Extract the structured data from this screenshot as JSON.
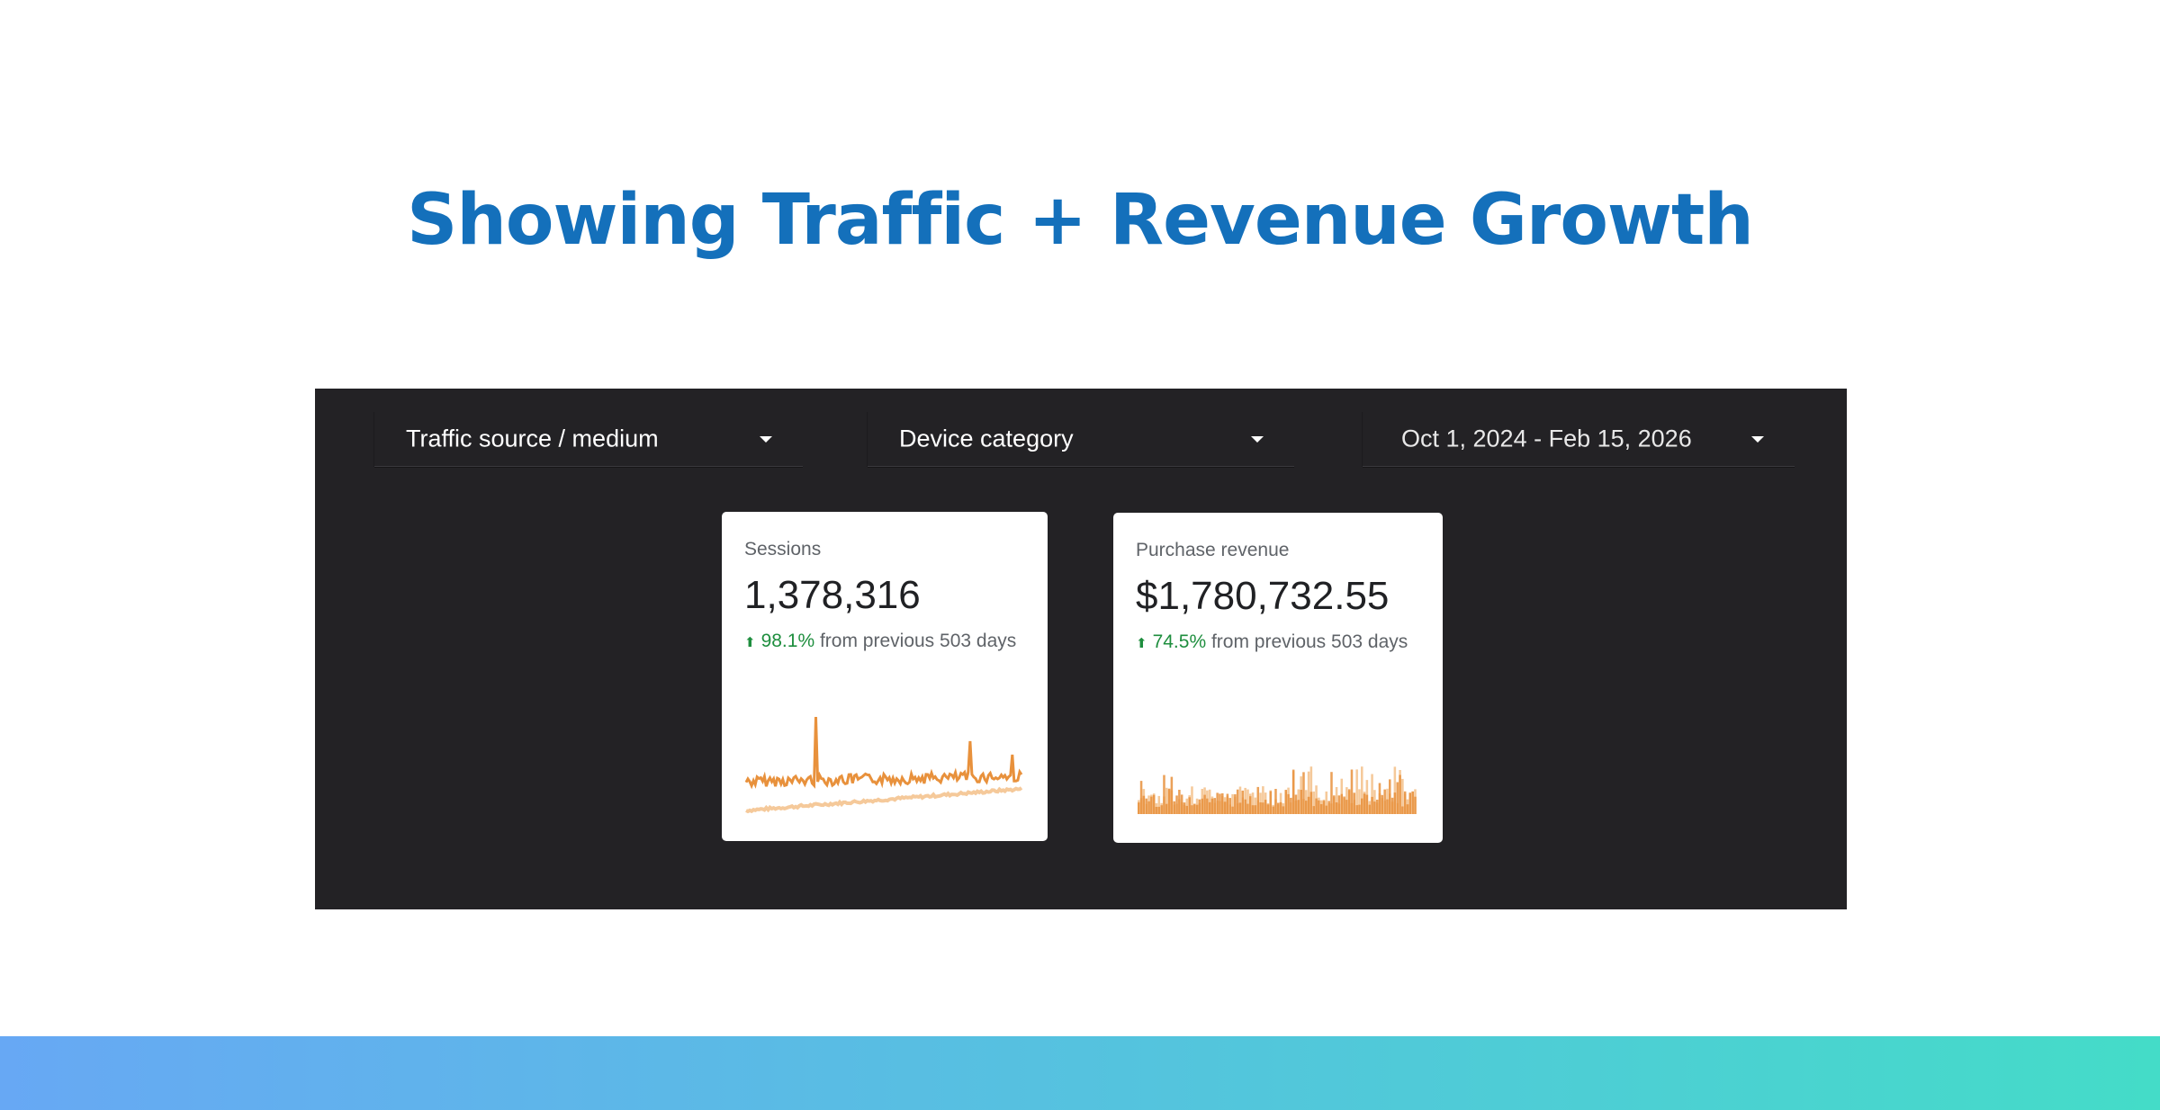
{
  "page": {
    "title": "Showing Traffic + Revenue Growth"
  },
  "filters": {
    "traffic_source": "Traffic source / medium",
    "device_category": "Device category",
    "date_range": "Oct 1, 2024 - Feb 15, 2026"
  },
  "cards": {
    "sessions": {
      "label": "Sessions",
      "value": "1,378,316",
      "change_pct": "98.1%",
      "change_text": "from previous 503 days"
    },
    "revenue": {
      "label": "Purchase revenue",
      "value": "$1,780,732.55",
      "change_pct": "74.5%",
      "change_text": "from previous 503 days"
    }
  },
  "colors": {
    "title": "#1470bb",
    "dashboard_bg": "#232225",
    "current_series": "#e8913c",
    "previous_series": "#f5c99a",
    "positive": "#1e8e3e"
  }
}
